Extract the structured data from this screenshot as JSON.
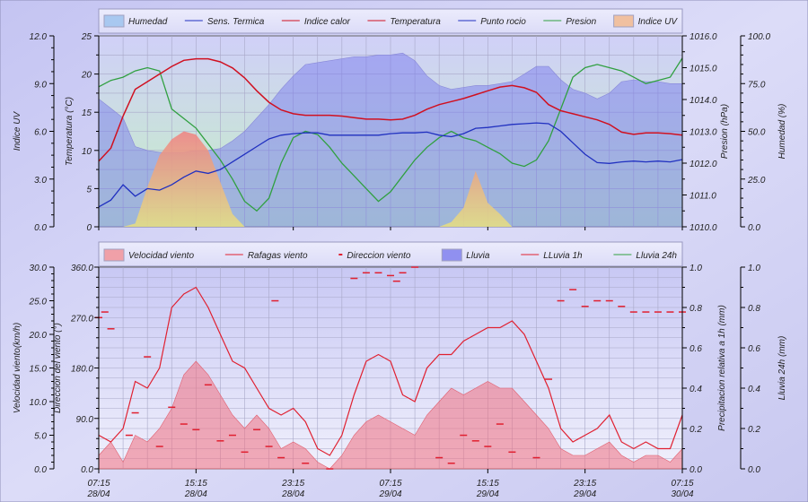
{
  "x_ticks": [
    [
      "07:15",
      "28/04"
    ],
    [
      "15:15",
      "28/04"
    ],
    [
      "23:15",
      "28/04"
    ],
    [
      "07:15",
      "29/04"
    ],
    [
      "15:15",
      "29/04"
    ],
    [
      "23:15",
      "29/04"
    ],
    [
      "07:15",
      "30/04"
    ]
  ],
  "chart_data": [
    {
      "type": "line",
      "title": "",
      "legend": [
        "Humedad",
        "Sens. Termica",
        "Indice calor",
        "Temperatura",
        "Punto rocio",
        "Presion",
        "Indice UV"
      ],
      "legend_placement": "top",
      "x_hours_from_start": "0..48 hourly",
      "axes": {
        "uv": {
          "label": "Indice UV",
          "range": [
            0,
            12
          ],
          "ticks": [
            "0.0",
            "3.0",
            "6.0",
            "9.0",
            "12.0"
          ]
        },
        "temp": {
          "label": "Temperatura (°C)",
          "range": [
            0,
            25
          ],
          "ticks": [
            "0",
            "5",
            "10",
            "15",
            "20",
            "25"
          ]
        },
        "pressure": {
          "label": "Presion (hPa)",
          "range": [
            1010,
            1016
          ],
          "ticks": [
            "1010.0",
            "1011.0",
            "1012.0",
            "1013.0",
            "1014.0",
            "1015.0",
            "1016.0"
          ]
        },
        "humidity": {
          "label": "Humedad (%)",
          "range": [
            0,
            100
          ],
          "ticks": [
            "0.0",
            "25.0",
            "50.0",
            "75.0",
            "100.0"
          ]
        }
      },
      "series": [
        {
          "name": "Humedad",
          "color": "#8080f0",
          "values": [
            67,
            62,
            57,
            42,
            40,
            39,
            39,
            39,
            40,
            40,
            41,
            45,
            50,
            57,
            64,
            72,
            79,
            85,
            86,
            87,
            88,
            89,
            89,
            90,
            90,
            91,
            87,
            79,
            74,
            72,
            73,
            74,
            74,
            75,
            76,
            80,
            84,
            84,
            77,
            72,
            70,
            67,
            70,
            76,
            77,
            76,
            76,
            75,
            75
          ]
        },
        {
          "name": "Temperatura",
          "color": "#d01020",
          "values": [
            8.6,
            10.3,
            14.5,
            18,
            19,
            20,
            21,
            21.8,
            22,
            22,
            21.6,
            20.8,
            19.5,
            17.8,
            16.3,
            15.3,
            14.8,
            14.6,
            14.6,
            14.6,
            14.5,
            14.3,
            14.1,
            14.1,
            14,
            14.1,
            14.6,
            15.4,
            16,
            16.4,
            16.8,
            17.3,
            17.8,
            18.3,
            18.5,
            18.2,
            17.6,
            16,
            15.2,
            14.8,
            14.4,
            14,
            13.4,
            12.4,
            12.1,
            12.3,
            12.3,
            12.2,
            12
          ]
        },
        {
          "name": "Punto rocio",
          "color": "#2030c0",
          "values": [
            2.6,
            3.5,
            5.5,
            4,
            5,
            4.8,
            5.5,
            6.5,
            7.3,
            7,
            7.5,
            8.5,
            9.5,
            10.5,
            11.5,
            12,
            12.2,
            12.3,
            12.3,
            12,
            12,
            12,
            12,
            12,
            12.2,
            12.3,
            12.3,
            12.4,
            12,
            11.8,
            12.2,
            12.9,
            13,
            13.2,
            13.4,
            13.5,
            13.6,
            13.5,
            12.5,
            11,
            9.5,
            8.4,
            8.3,
            8.5,
            8.6,
            8.5,
            8.6,
            8.5,
            8.8
          ]
        },
        {
          "name": "Presion",
          "color": "#30a040",
          "values": [
            1014.4,
            1014.6,
            1014.7,
            1014.9,
            1015.0,
            1014.9,
            1013.7,
            1013.4,
            1013.1,
            1012.6,
            1012.1,
            1011.5,
            1010.8,
            1010.5,
            1010.9,
            1012.0,
            1012.8,
            1013.0,
            1012.9,
            1012.5,
            1012.0,
            1011.6,
            1011.2,
            1010.8,
            1011.1,
            1011.6,
            1012.1,
            1012.5,
            1012.8,
            1013.0,
            1012.8,
            1012.7,
            1012.5,
            1012.3,
            1012.0,
            1011.9,
            1012.1,
            1012.7,
            1013.7,
            1014.7,
            1015.0,
            1015.1,
            1015.0,
            1014.9,
            1014.7,
            1014.5,
            1014.6,
            1014.7,
            1015.3
          ]
        },
        {
          "name": "Indice UV",
          "values": [
            0,
            0,
            0,
            0.2,
            2.5,
            4.5,
            5.5,
            6.0,
            5.8,
            4.8,
            2.8,
            0.8,
            0,
            0,
            0,
            0,
            0,
            0,
            0,
            0,
            0,
            0,
            0,
            0,
            0,
            0,
            0,
            0,
            0,
            0.3,
            1.2,
            3.5,
            1.5,
            0.8,
            0,
            0,
            0,
            0,
            0,
            0,
            0,
            0,
            0,
            0,
            0,
            0,
            0,
            0,
            0
          ]
        }
      ]
    },
    {
      "type": "line",
      "title": "",
      "legend": [
        "Velocidad viento",
        "Rafagas viento",
        "Direccion viento",
        "Lluvia",
        "LLuvia 1h",
        "Lluvia 24h"
      ],
      "legend_placement": "top",
      "axes": {
        "speed": {
          "label": "Velocidad viento(km/h)",
          "range": [
            0,
            30
          ],
          "ticks": [
            "0.0",
            "5.0",
            "10.0",
            "15.0",
            "20.0",
            "25.0",
            "30.0"
          ]
        },
        "direction": {
          "label": "Direccion del viento (°)",
          "range": [
            0,
            360
          ],
          "ticks": [
            "0.0",
            "90.0",
            "180.0",
            "270.0",
            "360.0"
          ]
        },
        "precip": {
          "label": "Precipitacion relativa a 1h (mm)",
          "range": [
            0,
            1
          ],
          "ticks": [
            "0.0",
            "0.2",
            "0.4",
            "0.6",
            "0.8",
            "1.0"
          ]
        },
        "rain24": {
          "label": "Lluvia 24h (mm)",
          "range": [
            0,
            1
          ],
          "ticks": [
            "0.0",
            "0.2",
            "0.4",
            "0.6",
            "0.8",
            "1.0"
          ]
        }
      },
      "series": [
        {
          "name": "Velocidad viento",
          "values": [
            2,
            4,
            1,
            5,
            4,
            6,
            9,
            14,
            16,
            14,
            11,
            8,
            6,
            8,
            6,
            3,
            4,
            3,
            1,
            0,
            2,
            5,
            7,
            8,
            7,
            6,
            5,
            8,
            10,
            12,
            11,
            12,
            13,
            12,
            12,
            10,
            8,
            6,
            3,
            2,
            2,
            3,
            4,
            2,
            1,
            2,
            2,
            1,
            3
          ]
        },
        {
          "name": "Rafagas viento",
          "values": [
            5,
            4,
            6,
            13,
            12,
            15,
            24,
            26,
            27,
            24,
            20,
            16,
            15,
            12,
            9,
            8,
            9,
            7,
            3,
            2,
            5,
            11,
            16,
            17,
            16,
            11,
            10,
            15,
            17,
            17,
            19,
            20,
            21,
            21,
            22,
            20,
            16,
            12,
            6,
            4,
            5,
            6,
            8,
            4,
            3,
            4,
            3,
            3,
            8
          ]
        },
        {
          "name": "Direccion viento",
          "points": [
            [
              0,
              270
            ],
            [
              0.5,
              280
            ],
            [
              1,
              250
            ],
            [
              2.5,
              60
            ],
            [
              3,
              100
            ],
            [
              4,
              200
            ],
            [
              5,
              40
            ],
            [
              6,
              110
            ],
            [
              7,
              80
            ],
            [
              8,
              70
            ],
            [
              9,
              150
            ],
            [
              10,
              50
            ],
            [
              11,
              60
            ],
            [
              12,
              30
            ],
            [
              13,
              70
            ],
            [
              14,
              40
            ],
            [
              14.5,
              300
            ],
            [
              15,
              20
            ],
            [
              17,
              10
            ],
            [
              19,
              0
            ],
            [
              21,
              340
            ],
            [
              22,
              350
            ],
            [
              23,
              350
            ],
            [
              24,
              345
            ],
            [
              24.5,
              335
            ],
            [
              25,
              350
            ],
            [
              26,
              360
            ],
            [
              28,
              20
            ],
            [
              29,
              10
            ],
            [
              30,
              60
            ],
            [
              31,
              50
            ],
            [
              32,
              40
            ],
            [
              33,
              80
            ],
            [
              34,
              30
            ],
            [
              36,
              20
            ],
            [
              37,
              160
            ],
            [
              38,
              300
            ],
            [
              39,
              320
            ],
            [
              40,
              290
            ],
            [
              41,
              300
            ],
            [
              42,
              300
            ],
            [
              43,
              290
            ],
            [
              44,
              280
            ],
            [
              45,
              280
            ],
            [
              46,
              280
            ],
            [
              47,
              280
            ],
            [
              48,
              280
            ]
          ]
        },
        {
          "name": "Lluvia",
          "values": [
            0
          ]
        },
        {
          "name": "LLuvia 1h",
          "values": [
            0
          ]
        },
        {
          "name": "Lluvia 24h",
          "values": [
            0
          ]
        }
      ]
    }
  ]
}
